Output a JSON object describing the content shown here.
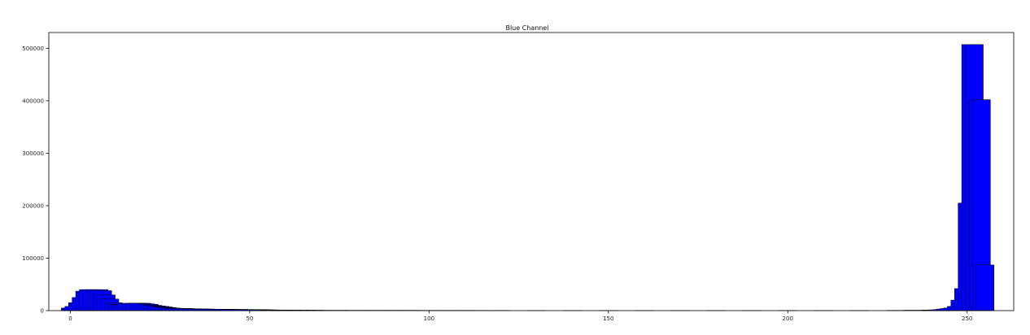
{
  "chart_data": {
    "type": "bar",
    "title": "Blue Channel",
    "xlabel": "",
    "ylabel": "",
    "xlim": [
      -6,
      263
    ],
    "ylim": [
      0,
      530000
    ],
    "xticks": [
      0,
      50,
      100,
      150,
      200,
      250
    ],
    "xtick_labels": [
      "0",
      "50",
      "100",
      "150",
      "200",
      "250"
    ],
    "yticks": [
      0,
      100000,
      200000,
      300000,
      400000,
      500000
    ],
    "ytick_labels": [
      "0",
      "100000",
      "200000",
      "300000",
      "400000",
      "500000"
    ],
    "bar_width": 5,
    "bar_color": "#0000ff",
    "edge_color": "#000000",
    "grid": false,
    "legend": "none",
    "x": [
      0,
      1,
      2,
      3,
      4,
      5,
      6,
      7,
      8,
      9,
      10,
      11,
      12,
      13,
      14,
      15,
      16,
      17,
      18,
      19,
      20,
      21,
      22,
      23,
      24,
      25,
      26,
      27,
      28,
      29,
      30,
      31,
      32,
      33,
      34,
      35,
      36,
      37,
      38,
      39,
      40,
      41,
      42,
      43,
      44,
      45,
      46,
      47,
      48,
      49,
      50,
      51,
      52,
      53,
      54,
      55,
      56,
      57,
      58,
      59,
      60,
      62,
      64,
      66,
      68,
      70,
      75,
      80,
      85,
      90,
      95,
      100,
      105,
      110,
      115,
      120,
      130,
      140,
      150,
      160,
      170,
      180,
      190,
      200,
      210,
      220,
      230,
      235,
      240,
      242,
      243,
      244,
      245,
      246,
      247,
      248,
      249,
      250,
      251,
      252,
      253,
      254,
      255
    ],
    "values": [
      5000,
      8000,
      15000,
      25000,
      37000,
      40000,
      40000,
      40000,
      40000,
      38000,
      30000,
      22000,
      15000,
      12000,
      11000,
      12000,
      13000,
      14000,
      14000,
      14000,
      14000,
      13000,
      12000,
      10000,
      9000,
      8000,
      7000,
      6000,
      5000,
      4500,
      4000,
      4000,
      4000,
      3500,
      3500,
      3000,
      3000,
      3000,
      3000,
      2500,
      2500,
      2500,
      2500,
      2500,
      2500,
      2200,
      2200,
      2200,
      2000,
      2000,
      2000,
      2000,
      1800,
      1800,
      1500,
      1500,
      1200,
      1200,
      1000,
      1000,
      1000,
      1000,
      800,
      800,
      800,
      700,
      700,
      600,
      600,
      600,
      600,
      500,
      500,
      500,
      400,
      400,
      300,
      300,
      300,
      300,
      300,
      300,
      300,
      300,
      300,
      300,
      500,
      800,
      1200,
      1500,
      2000,
      3000,
      4000,
      5000,
      8000,
      20000,
      42000,
      205000,
      507000,
      507000,
      400000,
      402000,
      87000
    ]
  }
}
